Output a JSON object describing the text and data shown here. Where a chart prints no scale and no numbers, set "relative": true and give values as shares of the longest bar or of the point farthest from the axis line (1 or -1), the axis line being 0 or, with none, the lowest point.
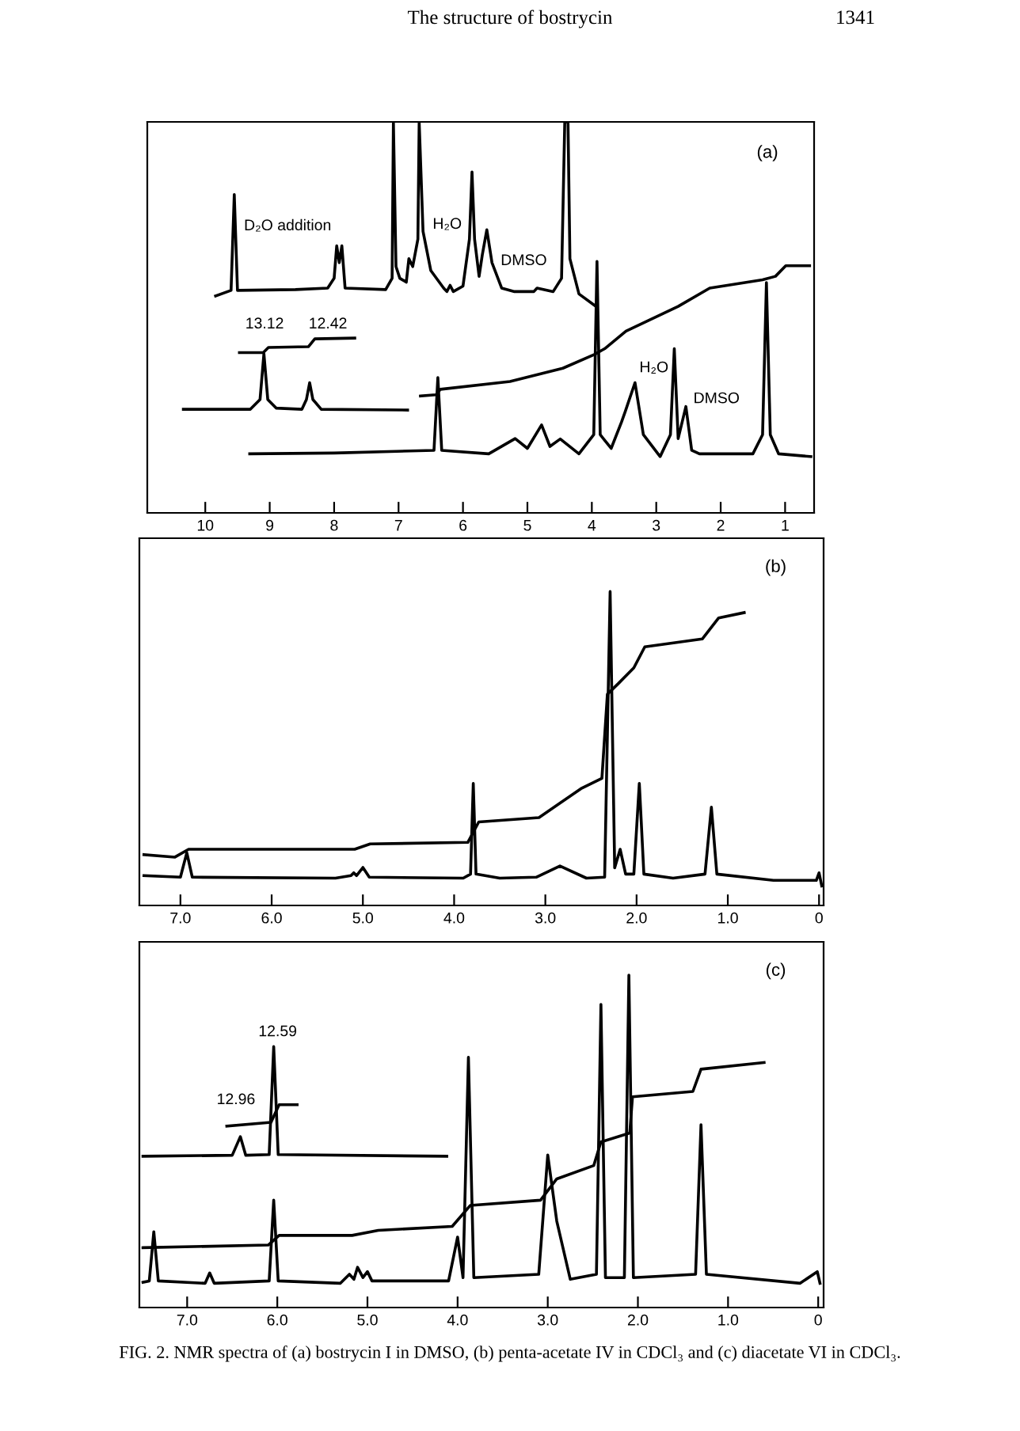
{
  "chart_data": [
    {
      "type": "line",
      "title": "(a)",
      "relative": true,
      "xlim": [
        10.9,
        0.55
      ],
      "xticks": [
        10,
        9,
        8,
        7,
        6,
        5,
        4,
        3,
        2,
        1
      ],
      "legend": false,
      "grid": false,
      "annotations": [
        "The structure of bostrycin",
        "1341",
        "D₂O addition",
        "H₂O",
        "DMSO",
        "13.12",
        "12.42",
        "H₂O",
        "DMSO"
      ],
      "series": [
        {
          "color": "#000000",
          "x": [
            9.84,
            9.6,
            9.55,
            9.5,
            8.6,
            8.1,
            8.0,
            7.96,
            7.92,
            7.88,
            7.83,
            7.2,
            7.1,
            7.08,
            7.04,
            6.98,
            6.88,
            6.84,
            6.78,
            6.7,
            6.68,
            6.62,
            6.5,
            6.3,
            6.25,
            6.2,
            6.15,
            6.0,
            5.9,
            5.86,
            5.82,
            5.75,
            5.7,
            5.63,
            5.55,
            5.4,
            5.2,
            4.9,
            4.85,
            4.6,
            4.47,
            4.42,
            4.37,
            4.34,
            4.2,
            3.96
          ],
          "values": [
            0.555,
            0.569,
            0.814,
            0.569,
            0.571,
            0.575,
            0.6,
            0.683,
            0.64,
            0.683,
            0.575,
            0.571,
            0.6,
            1.0,
            0.63,
            0.6,
            0.59,
            0.65,
            0.63,
            0.7,
            1.0,
            0.72,
            0.62,
            0.575,
            0.566,
            0.582,
            0.566,
            0.58,
            0.7,
            0.872,
            0.7,
            0.605,
            0.66,
            0.724,
            0.64,
            0.575,
            0.566,
            0.566,
            0.575,
            0.566,
            0.6,
            1.0,
            1.0,
            0.65,
            0.56,
            0.531
          ]
        },
        {
          "color": "#000000",
          "x": [
            10.34,
            9.3,
            9.15,
            9.09,
            9.03,
            8.9,
            8.5,
            8.43,
            8.38,
            8.33,
            8.2,
            6.86
          ],
          "values": [
            0.265,
            0.265,
            0.29,
            0.407,
            0.29,
            0.268,
            0.265,
            0.29,
            0.333,
            0.29,
            0.265,
            0.263
          ]
        },
        {
          "color": "#000000",
          "x": [
            9.47,
            9.1,
            9.02,
            8.4,
            8.3,
            7.68
          ],
          "values": [
            0.41,
            0.41,
            0.423,
            0.425,
            0.445,
            0.447
          ]
        },
        {
          "color": "#000000",
          "x": [
            9.31,
            8.0,
            6.45,
            6.39,
            6.33,
            5.6,
            5.19,
            5.0,
            4.78,
            4.65,
            4.49,
            4.2,
            3.97,
            3.92,
            3.87,
            3.7,
            3.54,
            3.48,
            3.33,
            3.2,
            2.94,
            2.78,
            2.72,
            2.66,
            2.54,
            2.45,
            2.33,
            1.5,
            1.35,
            1.29,
            1.23,
            1.1,
            0.6
          ],
          "values": [
            0.151,
            0.153,
            0.16,
            0.346,
            0.16,
            0.151,
            0.19,
            0.165,
            0.225,
            0.17,
            0.189,
            0.151,
            0.2,
            0.643,
            0.2,
            0.165,
            0.232,
            0.26,
            0.333,
            0.2,
            0.144,
            0.2,
            0.42,
            0.19,
            0.272,
            0.16,
            0.151,
            0.151,
            0.2,
            0.589,
            0.2,
            0.151,
            0.144
          ]
        },
        {
          "color": "#000000",
          "x": [
            6.66,
            6.42,
            6.35,
            5.27,
            4.45,
            3.96,
            3.8,
            3.47,
            2.66,
            2.17,
            1.35,
            1.15,
            0.99,
            0.62
          ],
          "values": [
            0.299,
            0.302,
            0.316,
            0.336,
            0.37,
            0.405,
            0.42,
            0.465,
            0.528,
            0.575,
            0.596,
            0.605,
            0.632,
            0.632
          ]
        }
      ]
    },
    {
      "type": "line",
      "title": "(b)",
      "relative": true,
      "xlim": [
        7.45,
        -0.05
      ],
      "xticks": [
        {
          "value": 7,
          "label": "7.0"
        },
        {
          "value": 6,
          "label": "6.0"
        },
        {
          "value": 5,
          "label": "5.0"
        },
        {
          "value": 4,
          "label": "4.0"
        },
        {
          "value": 3,
          "label": "3.0"
        },
        {
          "value": 2,
          "label": "2.0"
        },
        {
          "value": 1,
          "label": "1.0"
        },
        0
      ],
      "legend": false,
      "grid": false,
      "series": [
        {
          "color": "#000000",
          "x": [
            7.4,
            7.0,
            6.93,
            6.87,
            5.3,
            5.13,
            5.1,
            5.07,
            5.0,
            4.93,
            3.9,
            3.82,
            3.79,
            3.76,
            3.5,
            3.1,
            2.84,
            2.55,
            2.35,
            2.29,
            2.24,
            2.18,
            2.12,
            2.03,
            1.97,
            1.92,
            1.6,
            1.25,
            1.18,
            1.12,
            0.5,
            0.03,
            0.0,
            -0.03
          ],
          "values": [
            0.095,
            0.09,
            0.168,
            0.09,
            0.087,
            0.095,
            0.104,
            0.095,
            0.121,
            0.09,
            0.087,
            0.1,
            0.389,
            0.1,
            0.087,
            0.09,
            0.126,
            0.087,
            0.09,
            1.0,
            0.12,
            0.179,
            0.1,
            0.1,
            0.389,
            0.1,
            0.087,
            0.1,
            0.313,
            0.1,
            0.08,
            0.08,
            0.104,
            0.062
          ]
        },
        {
          "color": "#000000",
          "x": [
            7.4,
            7.06,
            6.91,
            5.09,
            4.92,
            3.85,
            3.73,
            3.07,
            2.61,
            2.38,
            2.32,
            2.2,
            2.03,
            1.91,
            1.28,
            1.1,
            0.82
          ],
          "values": [
            0.162,
            0.154,
            0.179,
            0.179,
            0.196,
            0.201,
            0.266,
            0.28,
            0.372,
            0.405,
            0.673,
            0.707,
            0.757,
            0.824,
            0.849,
            0.916,
            0.933
          ]
        }
      ]
    },
    {
      "type": "line",
      "title": "(c)",
      "relative": true,
      "xlim": [
        7.53,
        -0.06
      ],
      "xticks": [
        {
          "value": 7,
          "label": "7.0"
        },
        {
          "value": 6,
          "label": "6.0"
        },
        {
          "value": 5,
          "label": "5.0"
        },
        {
          "value": 4,
          "label": "4.0"
        },
        {
          "value": 3,
          "label": "3.0"
        },
        {
          "value": 2,
          "label": "2.0"
        },
        {
          "value": 1,
          "label": "1.0"
        },
        0
      ],
      "legend": false,
      "grid": false,
      "annotations": [
        "12.59",
        "12.96",
        "FIG. 2. NMR spectra of (a) bostrycin I in DMSO, (b) penta-acetate IV in CDCl₃ and (c) diacetate VI in CDCl₃."
      ],
      "series": [
        {
          "color": "#000000",
          "x": [
            7.49,
            7.42,
            7.37,
            7.32,
            6.8,
            6.75,
            6.7,
            6.09,
            6.04,
            5.99,
            5.3,
            5.2,
            5.15,
            5.11,
            5.05,
            5.0,
            4.95,
            4.1,
            4.0,
            3.94,
            3.88,
            3.82,
            3.1,
            3.0,
            2.9,
            2.75,
            2.46,
            2.41,
            2.36,
            2.15,
            2.1,
            2.05,
            1.36,
            1.3,
            1.24,
            0.2,
            0.01,
            -0.02
          ],
          "values": [
            0.076,
            0.08,
            0.228,
            0.08,
            0.073,
            0.104,
            0.073,
            0.08,
            0.323,
            0.08,
            0.073,
            0.1,
            0.085,
            0.121,
            0.09,
            0.108,
            0.08,
            0.08,
            0.212,
            0.09,
            0.753,
            0.09,
            0.1,
            0.459,
            0.26,
            0.085,
            0.1,
            0.912,
            0.09,
            0.09,
            1.0,
            0.09,
            0.1,
            0.55,
            0.1,
            0.073,
            0.108,
            0.073
          ]
        },
        {
          "color": "#000000",
          "x": [
            7.49,
            6.1,
            5.98,
            5.17,
            4.88,
            4.06,
            3.86,
            3.08,
            2.9,
            2.49,
            2.41,
            2.09,
            2.06,
            1.39,
            1.3,
            0.6
          ],
          "values": [
            0.18,
            0.188,
            0.217,
            0.217,
            0.232,
            0.244,
            0.307,
            0.323,
            0.387,
            0.427,
            0.498,
            0.525,
            0.634,
            0.65,
            0.717,
            0.737
          ]
        },
        {
          "color": "#000000",
          "x": [
            7.49,
            6.5,
            6.41,
            6.35,
            6.09,
            6.04,
            5.99,
            4.12
          ],
          "values": [
            0.455,
            0.458,
            0.514,
            0.458,
            0.46,
            0.785,
            0.46,
            0.455
          ]
        },
        {
          "color": "#000000",
          "x": [
            6.56,
            6.07,
            5.98,
            5.78
          ],
          "values": [
            0.546,
            0.557,
            0.61,
            0.61
          ]
        }
      ]
    }
  ]
}
